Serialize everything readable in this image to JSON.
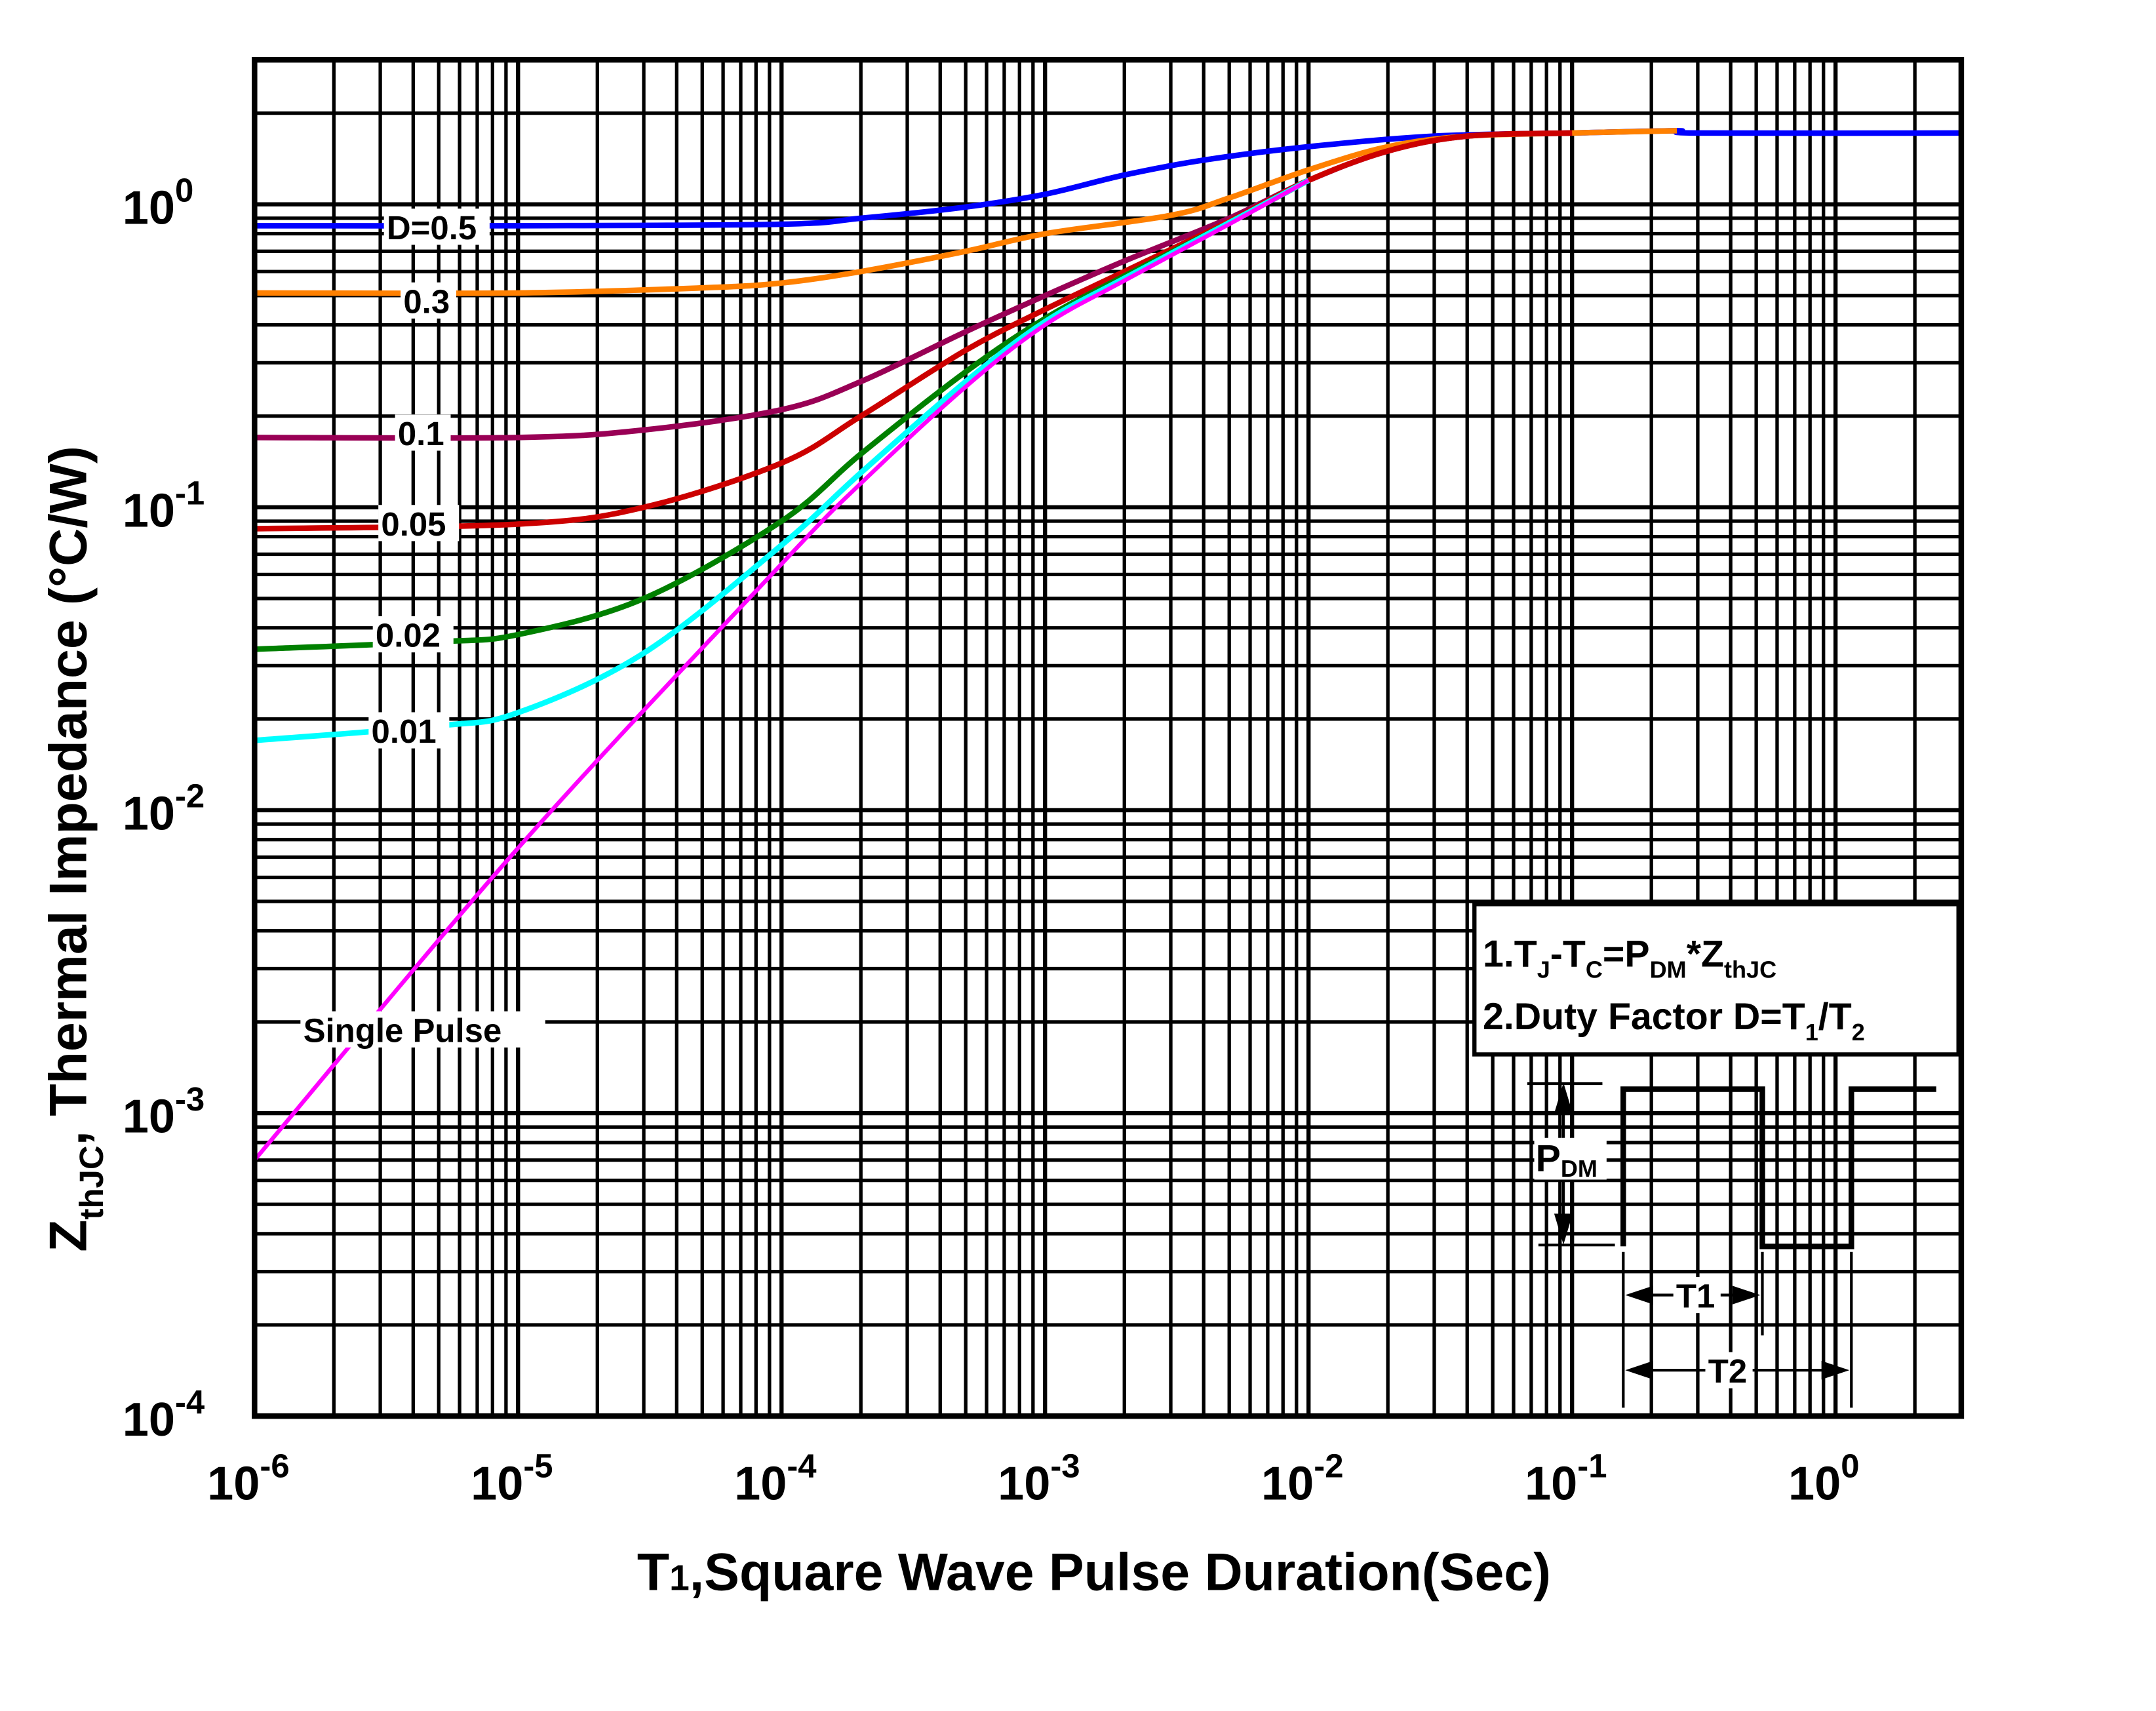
{
  "chart_data": {
    "type": "line",
    "xscale": "log",
    "yscale": "log",
    "xlim": [
      1e-06,
      3
    ],
    "ylim": [
      0.0001,
      3
    ],
    "grid": true,
    "xlabel": {
      "main": "T",
      "sub": "1",
      "rest": ",Square Wave Pulse Duration(Sec)"
    },
    "ylabel": {
      "z": "Z",
      "sub": "thJC",
      "rest": ", Thermal  Impedance (°C/W)"
    },
    "xticks": [
      {
        "base": "10",
        "exp": "-6",
        "value": 1e-06
      },
      {
        "base": "10",
        "exp": "-5",
        "value": 1e-05
      },
      {
        "base": "10",
        "exp": "-4",
        "value": 0.0001
      },
      {
        "base": "10",
        "exp": "-3",
        "value": 0.001
      },
      {
        "base": "10",
        "exp": "-2",
        "value": 0.01
      },
      {
        "base": "10",
        "exp": "-1",
        "value": 0.1
      },
      {
        "base": "10",
        "exp": "0",
        "value": 1
      }
    ],
    "yticks": [
      {
        "base": "10",
        "exp": "0",
        "value": 1
      },
      {
        "base": "10",
        "exp": "-1",
        "value": 0.1
      },
      {
        "base": "10",
        "exp": "-2",
        "value": 0.01
      },
      {
        "base": "10",
        "exp": "-3",
        "value": 0.001
      },
      {
        "base": "10",
        "exp": "-4",
        "value": 0.0001
      }
    ],
    "series": [
      {
        "name": "D=0.5",
        "color": "#0000ff",
        "points": [
          [
            1e-06,
            0.85
          ],
          [
            1e-05,
            0.85
          ],
          [
            0.0001,
            0.86
          ],
          [
            0.0002,
            0.9
          ],
          [
            0.0005,
            0.98
          ],
          [
            0.001,
            1.08
          ],
          [
            0.002,
            1.25
          ],
          [
            0.004,
            1.4
          ],
          [
            0.01,
            1.55
          ],
          [
            0.03,
            1.68
          ],
          [
            0.1,
            1.72
          ],
          [
            0.25,
            1.75
          ],
          [
            0.3,
            1.72
          ],
          [
            3,
            1.72
          ]
        ]
      },
      {
        "name": "0.3",
        "color": "#ff8000",
        "points": [
          [
            1e-06,
            0.51
          ],
          [
            1e-05,
            0.51
          ],
          [
            5e-05,
            0.53
          ],
          [
            0.0001,
            0.55
          ],
          [
            0.0002,
            0.6
          ],
          [
            0.0005,
            0.7
          ],
          [
            0.001,
            0.8
          ],
          [
            0.003,
            0.92
          ],
          [
            0.005,
            1.05
          ],
          [
            0.01,
            1.3
          ],
          [
            0.02,
            1.55
          ],
          [
            0.04,
            1.68
          ],
          [
            0.1,
            1.72
          ],
          [
            0.25,
            1.75
          ]
        ]
      },
      {
        "name": "0.1",
        "color": "#990055",
        "points": [
          [
            1e-06,
            0.17
          ],
          [
            1e-05,
            0.17
          ],
          [
            3e-05,
            0.18
          ],
          [
            0.0001,
            0.21
          ],
          [
            0.0002,
            0.26
          ],
          [
            0.0005,
            0.38
          ],
          [
            0.001,
            0.5
          ],
          [
            0.002,
            0.65
          ],
          [
            0.005,
            0.9
          ],
          [
            0.01,
            1.2
          ],
          [
            0.02,
            1.5
          ],
          [
            0.04,
            1.68
          ],
          [
            0.1,
            1.72
          ]
        ]
      },
      {
        "name": "0.05",
        "color": "#cc0000",
        "points": [
          [
            1e-06,
            0.085
          ],
          [
            1e-05,
            0.088
          ],
          [
            3e-05,
            0.1
          ],
          [
            0.0001,
            0.14
          ],
          [
            0.0002,
            0.2
          ],
          [
            0.0005,
            0.33
          ],
          [
            0.001,
            0.45
          ],
          [
            0.002,
            0.6
          ],
          [
            0.005,
            0.88
          ],
          [
            0.01,
            1.2
          ],
          [
            0.02,
            1.5
          ],
          [
            0.04,
            1.68
          ],
          [
            0.1,
            1.72
          ]
        ]
      },
      {
        "name": "0.02",
        "color": "#008000",
        "points": [
          [
            1e-06,
            0.034
          ],
          [
            5e-06,
            0.036
          ],
          [
            1e-05,
            0.038
          ],
          [
            3e-05,
            0.05
          ],
          [
            0.0001,
            0.09
          ],
          [
            0.0002,
            0.15
          ],
          [
            0.0005,
            0.28
          ],
          [
            0.001,
            0.42
          ],
          [
            0.002,
            0.58
          ],
          [
            0.005,
            0.87
          ],
          [
            0.01,
            1.2
          ]
        ]
      },
      {
        "name": "0.01",
        "color": "#00ffff",
        "points": [
          [
            1e-06,
            0.017
          ],
          [
            5e-06,
            0.019
          ],
          [
            1e-05,
            0.021
          ],
          [
            3e-05,
            0.033
          ],
          [
            0.0001,
            0.075
          ],
          [
            0.0002,
            0.13
          ],
          [
            0.0005,
            0.26
          ],
          [
            0.001,
            0.41
          ],
          [
            0.002,
            0.57
          ],
          [
            0.005,
            0.87
          ],
          [
            0.01,
            1.2
          ]
        ]
      },
      {
        "name": "Single Pulse",
        "color": "#ff00ff",
        "points": [
          [
            1e-06,
            0.0007
          ],
          [
            1e-05,
            0.0075
          ],
          [
            0.0001,
            0.065
          ],
          [
            0.0002,
            0.12
          ],
          [
            0.0005,
            0.25
          ],
          [
            0.001,
            0.4
          ],
          [
            0.002,
            0.56
          ],
          [
            0.005,
            0.86
          ],
          [
            0.01,
            1.2
          ]
        ]
      }
    ],
    "notes": {
      "line1": {
        "a": "1.T",
        "s1": "J",
        "b": "-T",
        "s2": "C",
        "c": "=P",
        "s3": "DM",
        "d": "*Z",
        "s4": "thJC"
      },
      "line2": {
        "a": "2.Duty Factor D=T",
        "s1": "1",
        "b": "/T",
        "s2": "2"
      }
    },
    "inset": {
      "pdm": "P",
      "pdm_sub": "DM",
      "t1": "T1",
      "t2": "T2"
    }
  }
}
